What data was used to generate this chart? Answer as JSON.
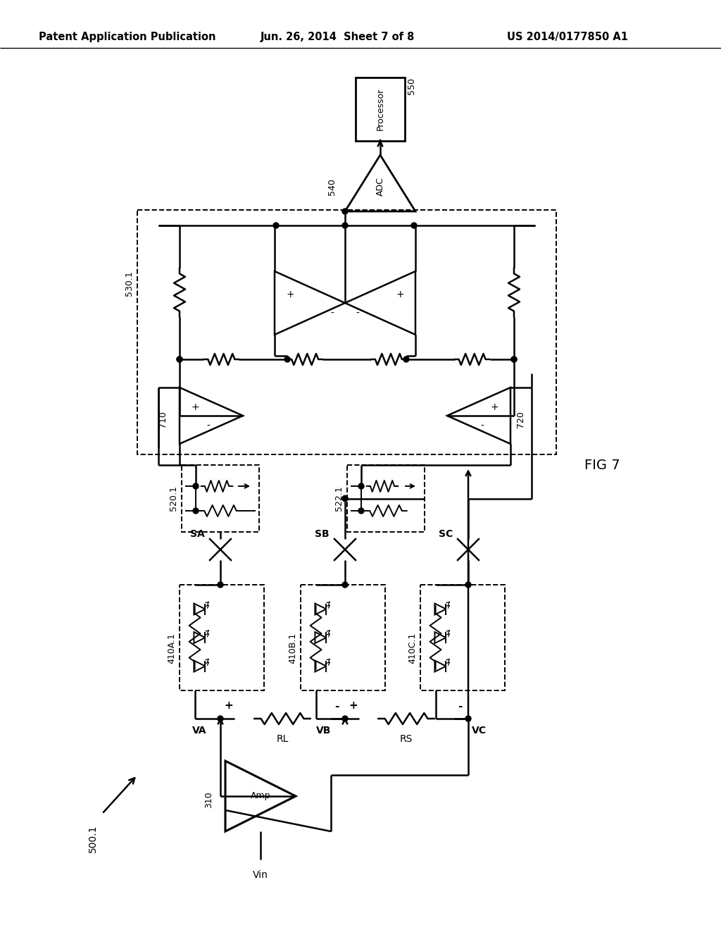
{
  "header_left": "Patent Application Publication",
  "header_center": "Jun. 26, 2014  Sheet 7 of 8",
  "header_right": "US 2014/0177850 A1",
  "fig_label": "FIG 7",
  "background": "#ffffff",
  "lc": "#000000"
}
